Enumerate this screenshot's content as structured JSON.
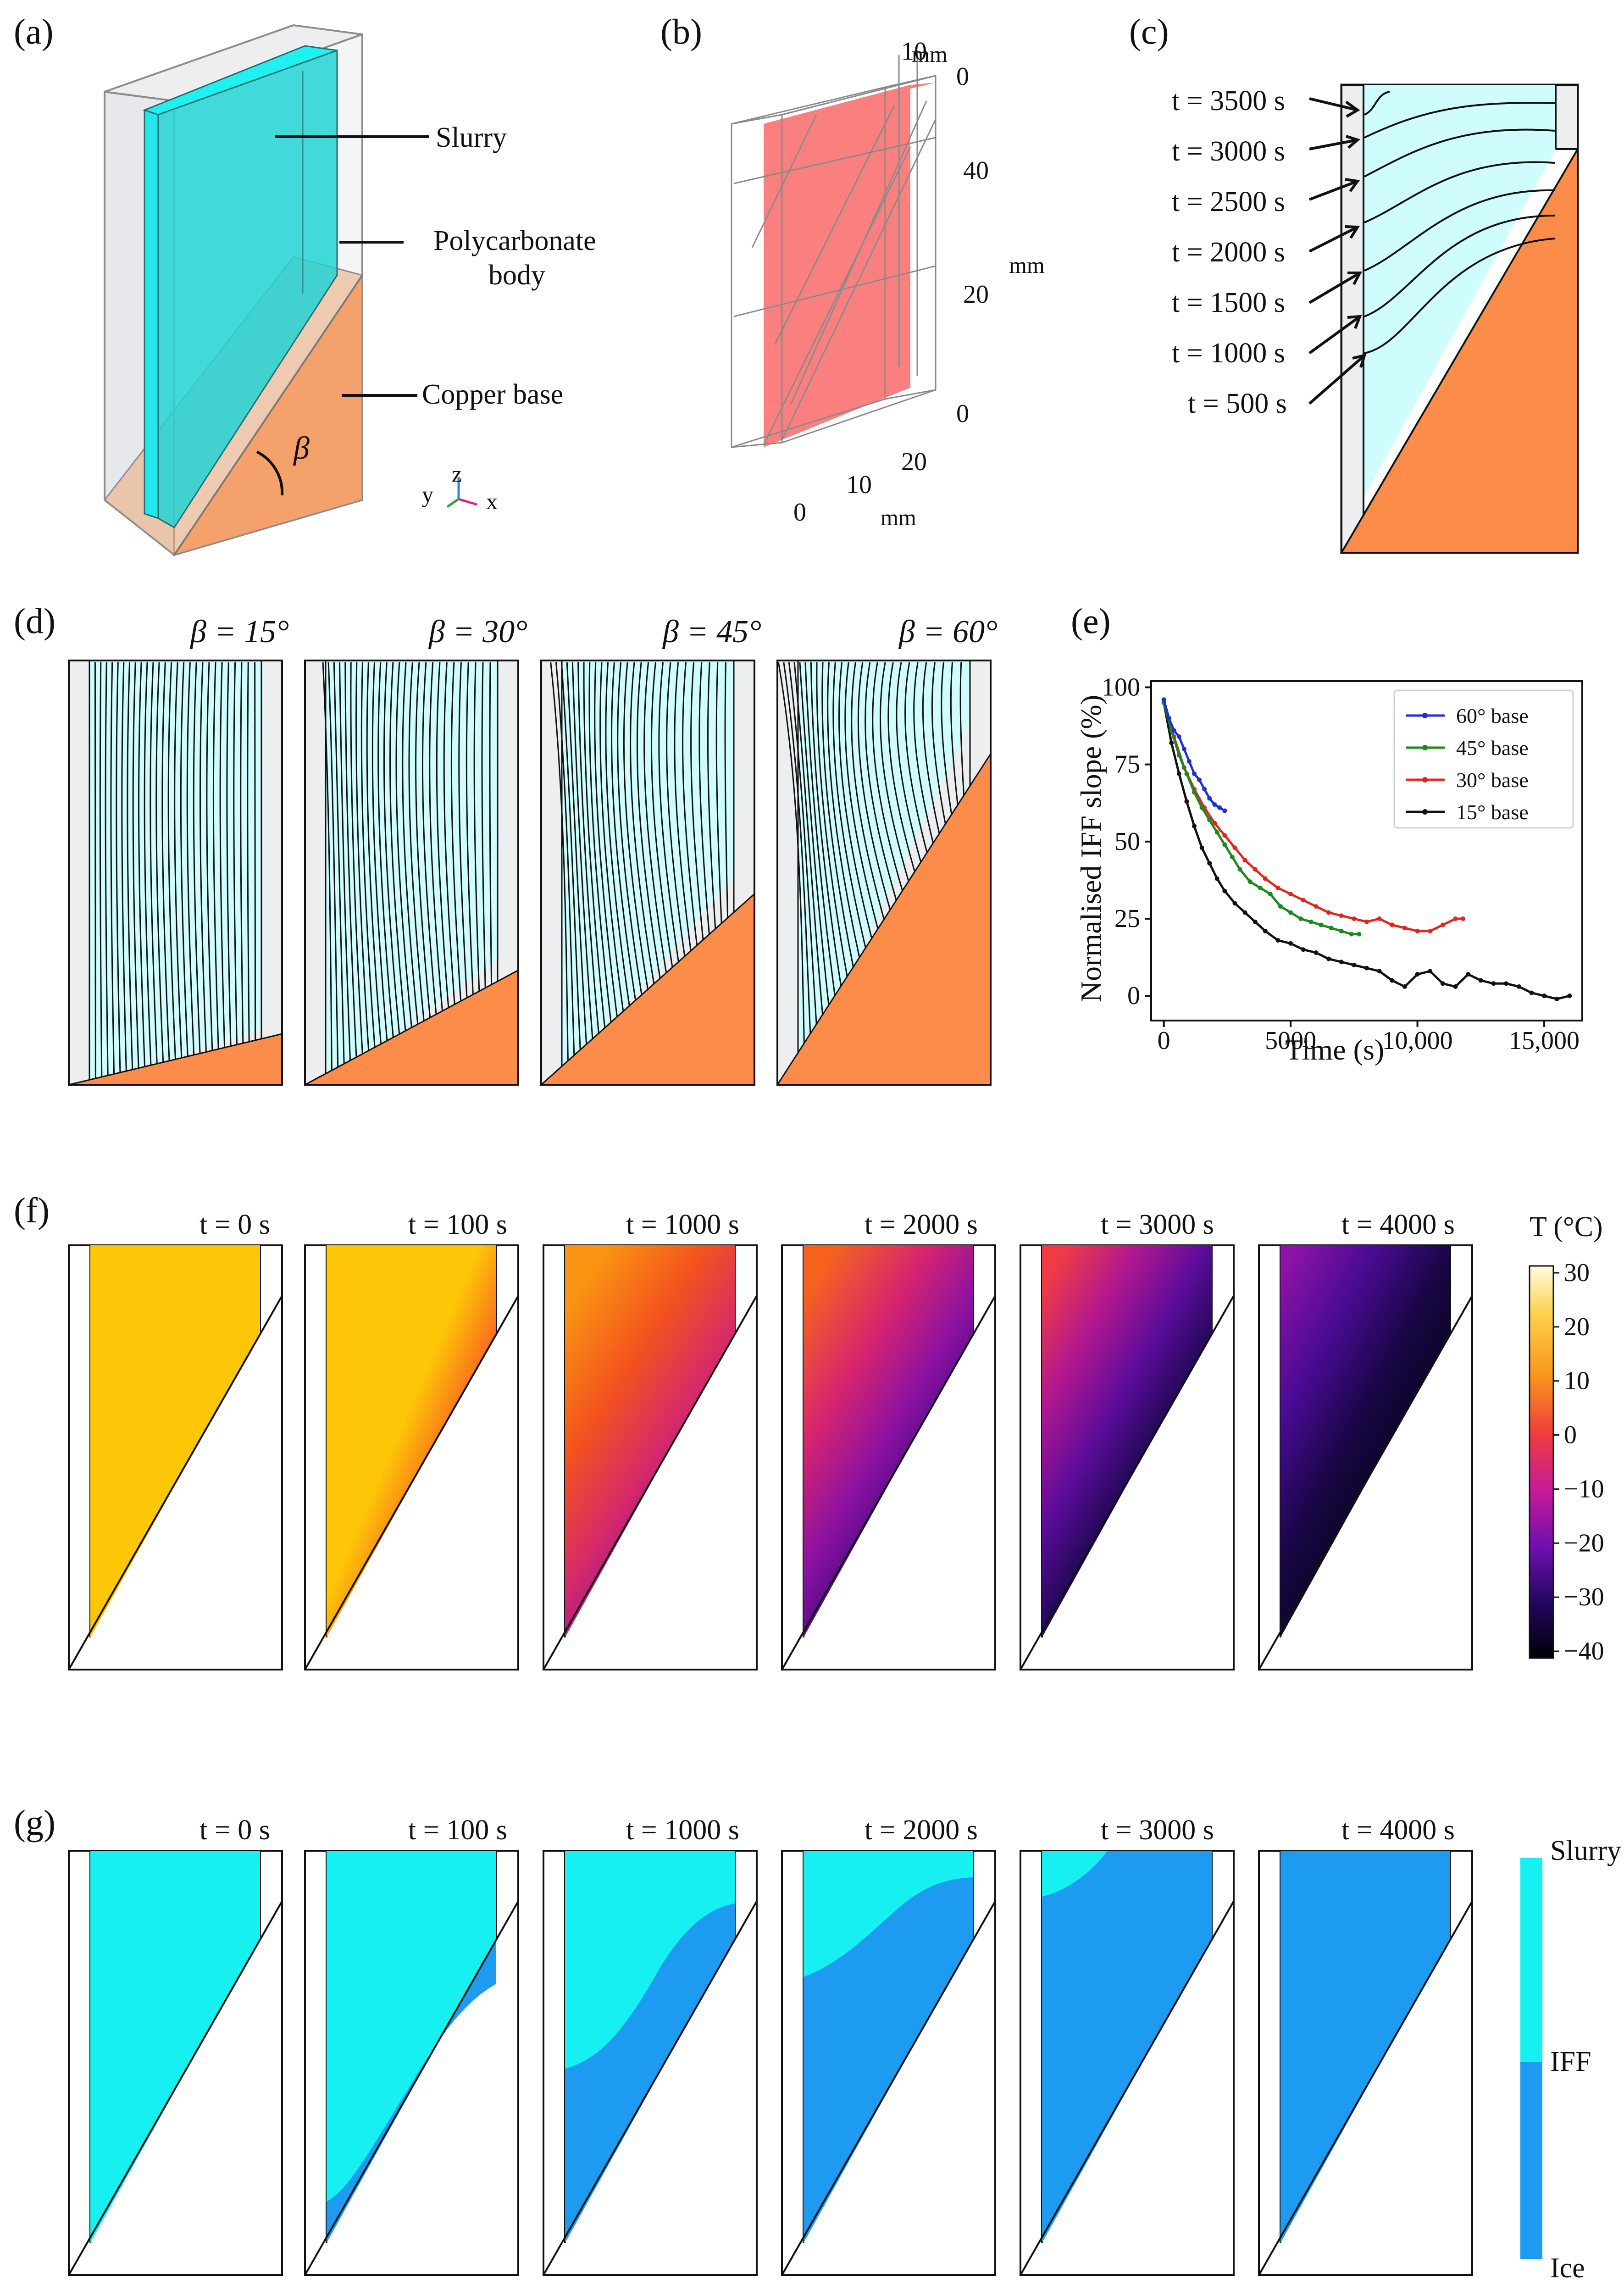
{
  "panel_labels": {
    "a": "(a)",
    "b": "(b)",
    "c": "(c)",
    "d": "(d)",
    "e": "(e)",
    "f": "(f)",
    "g": "(g)"
  },
  "panel_a": {
    "labels": {
      "slurry": "Slurry",
      "poly1": "Polycarbonate",
      "poly2": "body",
      "copper": "Copper base",
      "beta": "β"
    },
    "axes": {
      "y": "y",
      "z": "z",
      "x": "x"
    }
  },
  "panel_b": {
    "unit": "mm",
    "ticks_front": [
      "0",
      "10",
      "20"
    ],
    "ticks_vertical": [
      "0",
      "20",
      "40"
    ],
    "ticks_depth": [
      "10",
      "0"
    ]
  },
  "panel_c": {
    "isochrones": [
      "t = 3500 s",
      "t = 3000 s",
      "t = 2500 s",
      "t = 2000 s",
      "t = 1500 s",
      "t = 1000 s",
      "t = 500 s"
    ]
  },
  "panel_d": {
    "angles": [
      "β = 15°",
      "β = 30°",
      "β = 45°",
      "β = 60°"
    ]
  },
  "panel_f": {
    "times": [
      "t = 0 s",
      "t = 100 s",
      "t = 1000 s",
      "t = 2000 s",
      "t = 3000 s",
      "t = 4000 s"
    ],
    "colorbar_title": "T (°C)",
    "colorbar_ticks": [
      "30",
      "20",
      "10",
      "0",
      "−10",
      "−20",
      "−30",
      "−40"
    ]
  },
  "panel_g": {
    "times": [
      "t = 0 s",
      "t = 100 s",
      "t = 1000 s",
      "t = 2000 s",
      "t = 3000 s",
      "t = 4000 s"
    ],
    "colorbar_labels": {
      "top": "Slurry",
      "mid": "IFF",
      "bottom": "Ice"
    }
  },
  "colors": {
    "slurry": "#16f0f0",
    "ice": "#1c9bf0",
    "copper": "#fb8c49",
    "iff_region": "#cffcfd",
    "wall": "#eceef0"
  },
  "chart_data": {
    "type": "line",
    "title": "",
    "xlabel": "Time (s)",
    "ylabel": "Normalised IFF slope (%)",
    "xlim": [
      -500,
      16500
    ],
    "ylim": [
      -8,
      102
    ],
    "xticks": [
      0,
      5000,
      10000,
      15000
    ],
    "xtick_labels": [
      "0",
      "5000",
      "10,000",
      "15,000"
    ],
    "yticks": [
      0,
      25,
      50,
      75,
      100
    ],
    "ytick_labels": [
      "0",
      "25",
      "50",
      "75",
      "100"
    ],
    "legend_position": "top-right",
    "series": [
      {
        "name": "60° base",
        "color": "#1f2fd6",
        "x": [
          0,
          200,
          400,
          600,
          800,
          1000,
          1200,
          1400,
          1600,
          1800,
          2000,
          2200,
          2400
        ],
        "y": [
          96,
          90,
          86,
          84,
          80,
          76,
          72,
          70,
          67,
          64,
          62,
          61,
          60
        ]
      },
      {
        "name": "45° base",
        "color": "#1a8a1a",
        "x": [
          0,
          300,
          600,
          900,
          1200,
          1500,
          1800,
          2100,
          2400,
          2700,
          3000,
          3400,
          3800,
          4200,
          4600,
          5000,
          5400,
          5800,
          6200,
          6600,
          7000,
          7400,
          7700
        ],
        "y": [
          95,
          86,
          78,
          72,
          66,
          61,
          57,
          53,
          49,
          45,
          41,
          37,
          35,
          33,
          29,
          27,
          25,
          24,
          23,
          22,
          21,
          20,
          20
        ]
      },
      {
        "name": "30° base",
        "color": "#e3251c",
        "x": [
          0,
          400,
          800,
          1200,
          1600,
          2000,
          2400,
          2800,
          3200,
          3600,
          4000,
          4500,
          5000,
          5500,
          6000,
          6500,
          7000,
          7500,
          8000,
          8500,
          9000,
          9500,
          10000,
          10500,
          11000,
          11500,
          11800
        ],
        "y": [
          96,
          84,
          74,
          67,
          61,
          56,
          52,
          48,
          44,
          41,
          38,
          35,
          33,
          31,
          29,
          27,
          26,
          25,
          24,
          25,
          23,
          22,
          21,
          21,
          23,
          25,
          25
        ]
      },
      {
        "name": "15° base",
        "color": "#111111",
        "x": [
          0,
          300,
          600,
          900,
          1200,
          1500,
          1800,
          2100,
          2400,
          2800,
          3200,
          3600,
          4000,
          4500,
          5000,
          5500,
          6000,
          6500,
          7000,
          7500,
          8000,
          8500,
          9000,
          9500,
          10000,
          10500,
          11000,
          11500,
          12000,
          12500,
          13000,
          13500,
          14000,
          14500,
          15000,
          15500,
          16000
        ],
        "y": [
          95,
          82,
          72,
          63,
          55,
          48,
          43,
          38,
          34,
          30,
          27,
          24,
          21,
          18,
          17,
          15,
          14,
          12,
          11,
          10,
          9,
          8,
          5,
          3,
          7,
          8,
          4,
          3,
          7,
          5,
          4,
          4,
          3,
          1,
          0,
          -1,
          0
        ]
      }
    ]
  }
}
